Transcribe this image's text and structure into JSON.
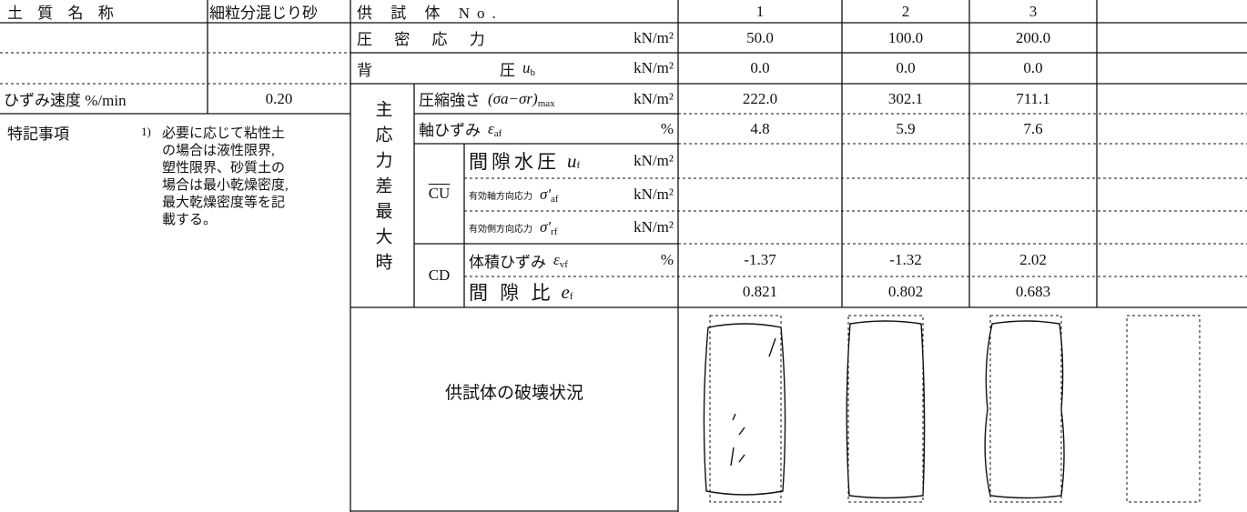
{
  "left": {
    "soil_name_label": "土 質 名 称",
    "soil_name": "細粒分混じり砂",
    "strain_rate_label": "ひずみ速度 %/min",
    "strain_rate": "0.20",
    "notes_label": "特記事項",
    "note_number": "1)",
    "note_lines": [
      "必要に応じて粘性土",
      "の場合は液性限界,",
      "塑性限界、砂質土の",
      "場合は最小乾燥密度,",
      "最大乾燥密度等を記",
      "載する。"
    ]
  },
  "table": {
    "header": {
      "label": "供 試 体 No.",
      "specimens": [
        "1",
        "2",
        "3"
      ]
    },
    "group_label": "主応力差最大時",
    "cu_label": "CU",
    "cd_label": "CD",
    "rows": [
      {
        "label": "圧 密 応 力",
        "unit": "kN/m²",
        "values": [
          "50.0",
          "100.0",
          "200.0"
        ]
      },
      {
        "label": "背",
        "label_2": "圧",
        "symbol": "u",
        "symbol_sub": "b",
        "unit": "kN/m²",
        "values": [
          "0.0",
          "0.0",
          "0.0"
        ]
      },
      {
        "label": "圧縮強さ",
        "symbol": "(σa−σr)",
        "symbol_sub": "max",
        "unit": "kN/m²",
        "values": [
          "222.0",
          "302.1",
          "711.1"
        ]
      },
      {
        "label": "軸ひずみ",
        "symbol": "ε",
        "symbol_sub": "af",
        "unit": "%",
        "values": [
          "4.8",
          "5.9",
          "7.6"
        ]
      },
      {
        "label": "間隙水圧",
        "symbol": "u",
        "symbol_sub": "f",
        "unit": "kN/m²",
        "values": []
      },
      {
        "label": "有効軸方向応力",
        "symbol": "σ'",
        "symbol_sub": "af",
        "unit": "kN/m²",
        "values": []
      },
      {
        "label": "有効側方向応力",
        "symbol": "σ'",
        "symbol_sub": "rf",
        "unit": "kN/m²",
        "values": []
      },
      {
        "label": "体積ひずみ",
        "symbol": "ε",
        "symbol_sub": "vf",
        "unit": "%",
        "values": [
          "-1.37",
          "-1.32",
          "2.02"
        ]
      },
      {
        "label": "間 隙 比",
        "symbol": "e",
        "symbol_sub": "f",
        "values": [
          "0.821",
          "0.802",
          "0.683"
        ]
      }
    ],
    "failure_label": "供試体の破壊状況"
  }
}
